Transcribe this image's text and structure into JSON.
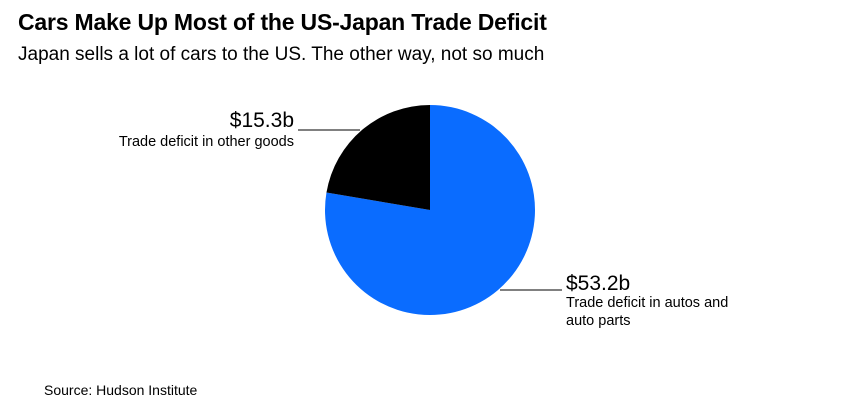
{
  "header": {
    "title": "Cars Make Up Most of the US-Japan Trade Deficit",
    "subtitle": "Japan sells a lot of cars to the US. The other way, not so much"
  },
  "footer": {
    "source": "Source: Hudson Institute"
  },
  "colors": {
    "autos": "#0a6cff",
    "other": "#000000",
    "leader": "#000000"
  },
  "chart_data": {
    "type": "pie",
    "title": "Cars Make Up Most of the US-Japan Trade Deficit",
    "subtitle": "Japan sells a lot of cars to the US. The other way, not so much",
    "unit": "billion USD",
    "slices": [
      {
        "label": "Trade deficit in autos and auto parts",
        "value": 53.2,
        "value_label": "$53.2b",
        "color": "#0a6cff"
      },
      {
        "label": "Trade deficit in other goods",
        "value": 15.3,
        "value_label": "$15.3b",
        "color": "#000000"
      }
    ]
  }
}
